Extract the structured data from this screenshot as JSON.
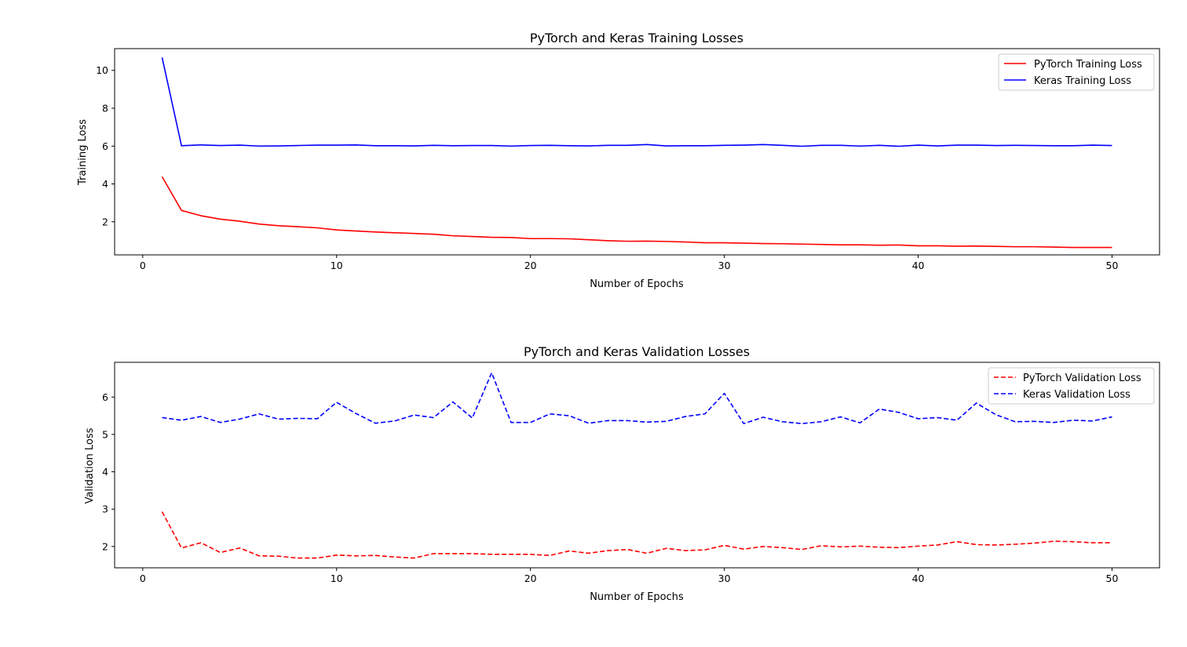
{
  "chart_data": [
    {
      "type": "line",
      "title": "PyTorch and Keras Training Losses",
      "xlabel": "Number of Epochs",
      "ylabel": "Training Loss",
      "xlim": [
        -1.45,
        52.45
      ],
      "ylim": [
        0.25,
        11.15
      ],
      "xticks": [
        0,
        10,
        20,
        30,
        40,
        50
      ],
      "yticks": [
        2,
        4,
        6,
        8,
        10
      ],
      "grid": false,
      "legend_position": "upper right",
      "x": [
        1,
        2,
        3,
        4,
        5,
        6,
        7,
        8,
        9,
        10,
        11,
        12,
        13,
        14,
        15,
        16,
        17,
        18,
        19,
        20,
        21,
        22,
        23,
        24,
        25,
        26,
        27,
        28,
        29,
        30,
        31,
        32,
        33,
        34,
        35,
        36,
        37,
        38,
        39,
        40,
        41,
        42,
        43,
        44,
        45,
        46,
        47,
        48,
        49,
        50
      ],
      "series": [
        {
          "name": "PyTorch Training Loss",
          "color": "#ff0000",
          "style": "solid",
          "values": [
            4.38,
            2.6,
            2.32,
            2.14,
            2.03,
            1.88,
            1.79,
            1.74,
            1.68,
            1.57,
            1.51,
            1.46,
            1.42,
            1.38,
            1.34,
            1.26,
            1.22,
            1.18,
            1.17,
            1.11,
            1.11,
            1.1,
            1.05,
            1.0,
            0.97,
            0.98,
            0.96,
            0.93,
            0.89,
            0.89,
            0.87,
            0.85,
            0.84,
            0.82,
            0.8,
            0.78,
            0.78,
            0.76,
            0.77,
            0.73,
            0.73,
            0.71,
            0.72,
            0.7,
            0.68,
            0.68,
            0.66,
            0.64,
            0.64,
            0.64
          ]
        },
        {
          "name": "Keras Training Loss",
          "color": "#0000ff",
          "style": "solid",
          "values": [
            10.68,
            6.02,
            6.06,
            6.03,
            6.05,
            6.0,
            6.01,
            6.03,
            6.05,
            6.05,
            6.06,
            6.02,
            6.02,
            6.01,
            6.04,
            6.02,
            6.03,
            6.03,
            6.0,
            6.03,
            6.04,
            6.02,
            6.01,
            6.04,
            6.04,
            6.08,
            6.01,
            6.02,
            6.02,
            6.04,
            6.05,
            6.08,
            6.04,
            5.99,
            6.04,
            6.04,
            6.0,
            6.04,
            5.99,
            6.05,
            6.01,
            6.05,
            6.05,
            6.03,
            6.04,
            6.03,
            6.02,
            6.02,
            6.05,
            6.03
          ]
        }
      ]
    },
    {
      "type": "line",
      "title": "PyTorch and Keras Validation Losses",
      "xlabel": "Number of Epochs",
      "ylabel": "Validation Loss",
      "xlim": [
        -1.45,
        52.45
      ],
      "ylim": [
        1.43,
        6.93
      ],
      "xticks": [
        0,
        10,
        20,
        30,
        40,
        50
      ],
      "yticks": [
        2,
        3,
        4,
        5,
        6
      ],
      "grid": false,
      "legend_position": "upper right",
      "x": [
        1,
        2,
        3,
        4,
        5,
        6,
        7,
        8,
        9,
        10,
        11,
        12,
        13,
        14,
        15,
        16,
        17,
        18,
        19,
        20,
        21,
        22,
        23,
        24,
        25,
        26,
        27,
        28,
        29,
        30,
        31,
        32,
        33,
        34,
        35,
        36,
        37,
        38,
        39,
        40,
        41,
        42,
        43,
        44,
        45,
        46,
        47,
        48,
        49,
        50
      ],
      "series": [
        {
          "name": "PyTorch Validation Loss",
          "color": "#ff0000",
          "style": "dashed",
          "values": [
            2.93,
            1.96,
            2.1,
            1.84,
            1.96,
            1.75,
            1.74,
            1.69,
            1.69,
            1.77,
            1.75,
            1.76,
            1.72,
            1.69,
            1.81,
            1.81,
            1.81,
            1.79,
            1.79,
            1.79,
            1.76,
            1.88,
            1.82,
            1.89,
            1.92,
            1.82,
            1.95,
            1.89,
            1.91,
            2.03,
            1.93,
            2.0,
            1.97,
            1.92,
            2.02,
            1.99,
            2.01,
            1.98,
            1.97,
            2.01,
            2.04,
            2.13,
            2.05,
            2.04,
            2.06,
            2.09,
            2.14,
            2.13,
            2.1,
            2.1
          ]
        },
        {
          "name": "Keras Validation Loss",
          "color": "#0000ff",
          "style": "dashed",
          "values": [
            5.45,
            5.38,
            5.48,
            5.32,
            5.41,
            5.55,
            5.41,
            5.43,
            5.42,
            5.86,
            5.56,
            5.3,
            5.36,
            5.52,
            5.45,
            5.87,
            5.44,
            6.65,
            5.32,
            5.32,
            5.55,
            5.5,
            5.3,
            5.37,
            5.37,
            5.33,
            5.35,
            5.48,
            5.55,
            6.1,
            5.29,
            5.46,
            5.34,
            5.29,
            5.34,
            5.47,
            5.31,
            5.68,
            5.59,
            5.42,
            5.45,
            5.38,
            5.84,
            5.53,
            5.34,
            5.35,
            5.32,
            5.38,
            5.36,
            5.47
          ]
        }
      ]
    }
  ]
}
